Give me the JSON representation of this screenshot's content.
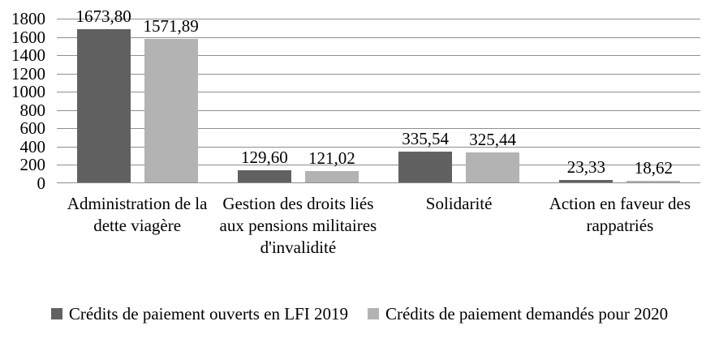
{
  "chart_data": {
    "type": "bar",
    "title": "",
    "xlabel": "",
    "ylabel": "",
    "categories": [
      "Administration de la dette viagère",
      "Gestion des droits liés aux pensions militaires d'invalidité",
      "Solidarité",
      "Action en faveur des rappatriés"
    ],
    "series": [
      {
        "name": "Crédits de paiement ouverts en LFI 2019",
        "values": [
          1673.8,
          129.6,
          335.54,
          23.33
        ],
        "value_labels": [
          "1673,80",
          "129,60",
          "335,54",
          "23,33"
        ],
        "color": "#616161"
      },
      {
        "name": "Crédits de paiement demandés pour 2020",
        "values": [
          1571.89,
          121.02,
          325.44,
          18.62
        ],
        "value_labels": [
          "1571,89",
          "121,02",
          "325,44",
          "18,62"
        ],
        "color": "#b3b3b3"
      }
    ],
    "y_axis": {
      "min": 0,
      "max": 1800,
      "step": 200,
      "tick_labels": [
        "0",
        "200",
        "400",
        "600",
        "800",
        "1000",
        "1200",
        "1400",
        "1600",
        "1800"
      ]
    },
    "grid": true,
    "legend_position": "bottom",
    "colors": {
      "grid_line": "#8f8f8f",
      "axis_line": "#8f8f8f",
      "text": "#000000",
      "background": "#ffffff"
    }
  }
}
